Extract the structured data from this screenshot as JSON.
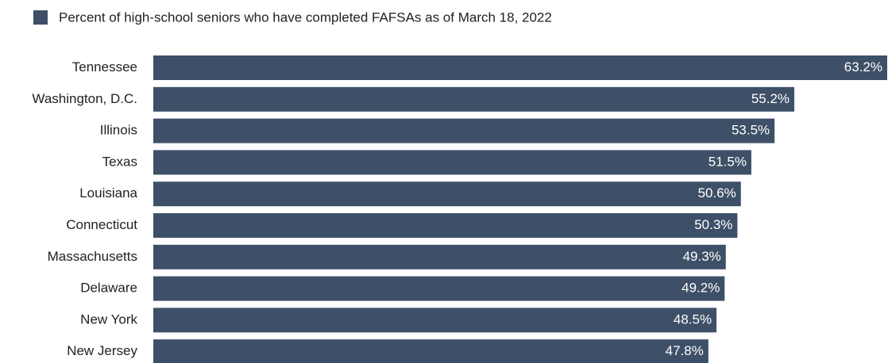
{
  "chart_data": {
    "type": "hbar",
    "categories": [
      "Tennessee",
      "Washington, D.C.",
      "Illinois",
      "Texas",
      "Louisiana",
      "Connecticut",
      "Massachusetts",
      "Delaware",
      "New York",
      "New Jersey"
    ],
    "series": [
      {
        "name": "Percent of high-school seniors who have completed FAFSAs as of March 18, 2022",
        "color": "#3e5068",
        "values": [
          63.2,
          55.2,
          53.5,
          51.5,
          50.6,
          50.3,
          49.3,
          49.2,
          48.5,
          47.8
        ],
        "value_labels": [
          "63.2%",
          "55.2%",
          "53.5%",
          "51.5%",
          "50.6%",
          "50.3%",
          "49.3%",
          "49.2%",
          "48.5%",
          "47.8%"
        ]
      }
    ],
    "legend": "top-left"
  }
}
